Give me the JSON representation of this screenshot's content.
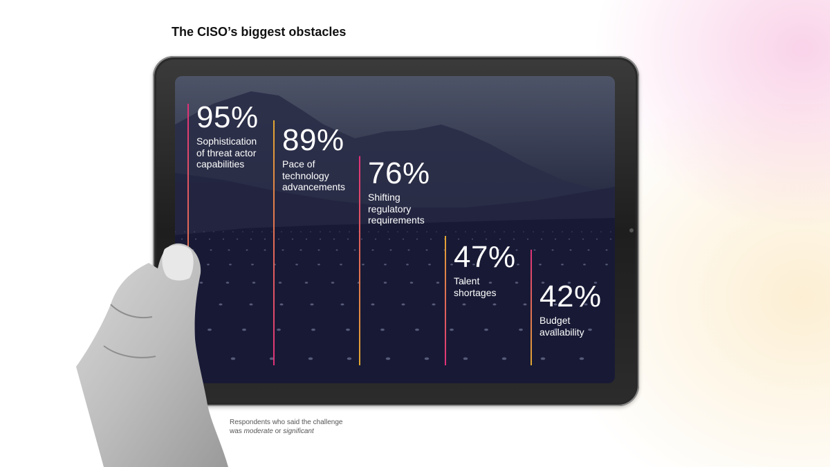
{
  "title": "The CISO’s biggest obstacles",
  "note": {
    "line1": "Respondents who said the challenge",
    "line2_prefix": "was ",
    "line2_em1": "moderate",
    "line2_mid": " or ",
    "line2_em2": "significant"
  },
  "colors": {
    "line_pink": "#e0307a",
    "line_gold": "#e3a832",
    "text": "#ffffff"
  },
  "chart_data": {
    "type": "bar",
    "title": "The CISO’s biggest obstacles",
    "unit": "%",
    "ylim": [
      0,
      100
    ],
    "categories": [
      [
        "Sophistication",
        "of threat actor",
        "capabilities"
      ],
      [
        "Pace of",
        "technology",
        "advancements"
      ],
      [
        "Shifting",
        "regulatory",
        "requirements"
      ],
      [
        "Talent",
        "shortages"
      ],
      [
        "Budget",
        "availability"
      ]
    ],
    "values": [
      95,
      89,
      76,
      47,
      42
    ],
    "value_labels": [
      "95%",
      "89%",
      "76%",
      "47%",
      "42%"
    ],
    "note": "Respondents who said the challenge was moderate or significant"
  }
}
